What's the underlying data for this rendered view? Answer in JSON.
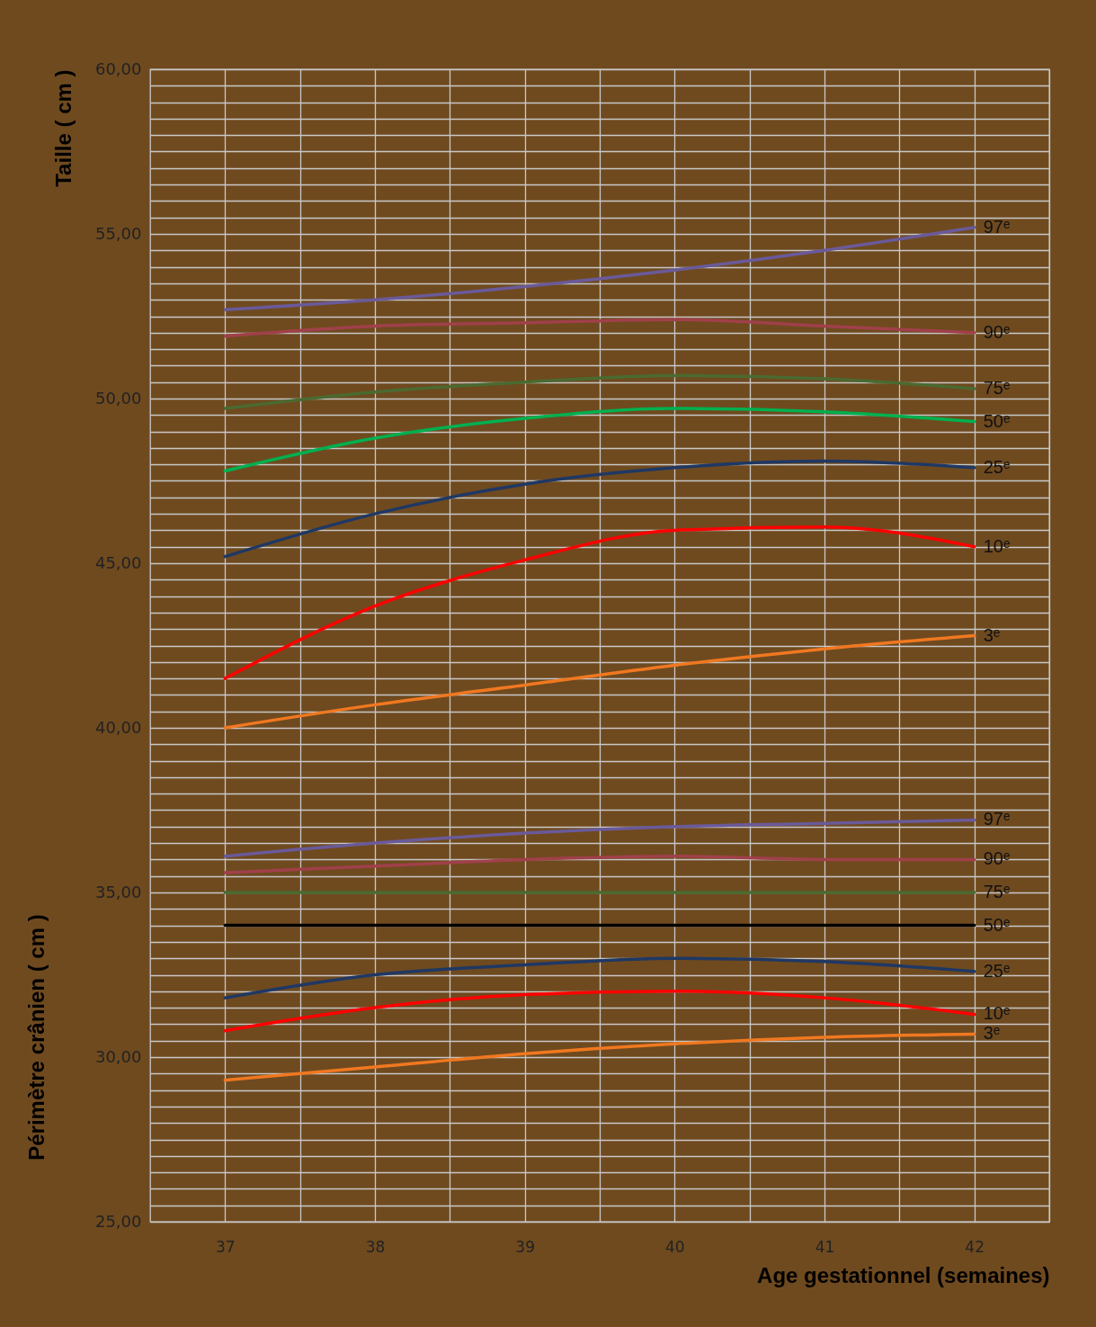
{
  "chart_data": {
    "type": "line",
    "xlabel": "Age gestationnel (semaines)",
    "ylabel": "Taille ( cm )",
    "annotations": [
      "Périmètre crânien ( cm )"
    ],
    "x": [
      37,
      38,
      39,
      40,
      41,
      42
    ],
    "xlim": [
      36.5,
      42.5
    ],
    "xticks": [
      37,
      {
        "value": 37.5,
        "label": null
      },
      38,
      {
        "value": 38.5,
        "label": null
      },
      39,
      {
        "value": 39.5,
        "label": null
      },
      40,
      {
        "value": 40.5,
        "label": null
      },
      41,
      {
        "value": 41.5,
        "label": null
      },
      42,
      {
        "value": 42.5,
        "label": null
      }
    ],
    "ylim": [
      25,
      60
    ],
    "yticks": [
      {
        "value": 25,
        "label": "25,00"
      },
      {
        "value": 25.5,
        "label": null
      },
      {
        "value": 26,
        "label": null
      },
      {
        "value": 26.5,
        "label": null
      },
      {
        "value": 27,
        "label": null
      },
      {
        "value": 27.5,
        "label": null
      },
      {
        "value": 28,
        "label": null
      },
      {
        "value": 28.5,
        "label": null
      },
      {
        "value": 29,
        "label": null
      },
      {
        "value": 29.5,
        "label": null
      },
      {
        "value": 30,
        "label": "30,00"
      },
      {
        "value": 30.5,
        "label": null
      },
      {
        "value": 31,
        "label": null
      },
      {
        "value": 31.5,
        "label": null
      },
      {
        "value": 32,
        "label": null
      },
      {
        "value": 32.5,
        "label": null
      },
      {
        "value": 33,
        "label": null
      },
      {
        "value": 33.5,
        "label": null
      },
      {
        "value": 34,
        "label": null
      },
      {
        "value": 34.5,
        "label": null
      },
      {
        "value": 35,
        "label": "35,00"
      },
      {
        "value": 35.5,
        "label": null
      },
      {
        "value": 36,
        "label": null
      },
      {
        "value": 36.5,
        "label": null
      },
      {
        "value": 37,
        "label": null
      },
      {
        "value": 37.5,
        "label": null
      },
      {
        "value": 38,
        "label": null
      },
      {
        "value": 38.5,
        "label": null
      },
      {
        "value": 39,
        "label": null
      },
      {
        "value": 39.5,
        "label": null
      },
      {
        "value": 40,
        "label": "40,00"
      },
      {
        "value": 40.5,
        "label": null
      },
      {
        "value": 41,
        "label": null
      },
      {
        "value": 41.5,
        "label": null
      },
      {
        "value": 42,
        "label": null
      },
      {
        "value": 42.5,
        "label": null
      },
      {
        "value": 43,
        "label": null
      },
      {
        "value": 43.5,
        "label": null
      },
      {
        "value": 44,
        "label": null
      },
      {
        "value": 44.5,
        "label": null
      },
      {
        "value": 45,
        "label": "45,00"
      },
      {
        "value": 45.5,
        "label": null
      },
      {
        "value": 46,
        "label": null
      },
      {
        "value": 46.5,
        "label": null
      },
      {
        "value": 47,
        "label": null
      },
      {
        "value": 47.5,
        "label": null
      },
      {
        "value": 48,
        "label": null
      },
      {
        "value": 48.5,
        "label": null
      },
      {
        "value": 49,
        "label": null
      },
      {
        "value": 49.5,
        "label": null
      },
      {
        "value": 50,
        "label": "50,00"
      },
      {
        "value": 50.5,
        "label": null
      },
      {
        "value": 51,
        "label": null
      },
      {
        "value": 51.5,
        "label": null
      },
      {
        "value": 52,
        "label": null
      },
      {
        "value": 52.5,
        "label": null
      },
      {
        "value": 53,
        "label": null
      },
      {
        "value": 53.5,
        "label": null
      },
      {
        "value": 54,
        "label": null
      },
      {
        "value": 54.5,
        "label": null
      },
      {
        "value": 55,
        "label": "55,00"
      },
      {
        "value": 55.5,
        "label": null
      },
      {
        "value": 56,
        "label": null
      },
      {
        "value": 56.5,
        "label": null
      },
      {
        "value": 57,
        "label": null
      },
      {
        "value": 57.5,
        "label": null
      },
      {
        "value": 58,
        "label": null
      },
      {
        "value": 58.5,
        "label": null
      },
      {
        "value": 59,
        "label": null
      },
      {
        "value": 59.5,
        "label": null
      },
      {
        "value": 60,
        "label": "60,00"
      }
    ],
    "grid": true,
    "marker": "none",
    "line_style": "solid",
    "series": [
      {
        "name": "97ᵉ",
        "color": "#6a5a9a",
        "values": [
          52.7,
          53.0,
          53.4,
          53.9,
          54.5,
          55.2
        ]
      },
      {
        "name": "90ᵉ",
        "color": "#a0404a",
        "values": [
          51.9,
          52.2,
          52.3,
          52.4,
          52.2,
          52.0
        ]
      },
      {
        "name": "75ᵉ",
        "color": "#4a6a30",
        "values": [
          49.7,
          50.2,
          50.5,
          50.7,
          50.6,
          50.3
        ]
      },
      {
        "name": "50ᵉ",
        "color": "#00b050",
        "values": [
          47.8,
          48.8,
          49.4,
          49.7,
          49.6,
          49.3
        ]
      },
      {
        "name": "25ᵉ",
        "color": "#1f3864",
        "values": [
          45.2,
          46.5,
          47.4,
          47.9,
          48.1,
          47.9
        ]
      },
      {
        "name": "10ᵉ",
        "color": "#ff0000",
        "values": [
          41.5,
          43.7,
          45.1,
          46.0,
          46.1,
          45.5
        ]
      },
      {
        "name": "3ᵉ",
        "color": "#f07820",
        "values": [
          40.0,
          40.7,
          41.3,
          41.9,
          42.4,
          42.8
        ]
      },
      {
        "name": "97ᵉ",
        "color": "#6a5a9a",
        "values": [
          36.1,
          36.5,
          36.8,
          37.0,
          37.1,
          37.2
        ]
      },
      {
        "name": "90ᵉ",
        "color": "#a0404a",
        "values": [
          35.6,
          35.8,
          36.0,
          36.1,
          36.0,
          36.0
        ]
      },
      {
        "name": "75ᵉ",
        "color": "#4a6a30",
        "values": [
          35.0,
          35.0,
          35.0,
          35.0,
          35.0,
          35.0
        ]
      },
      {
        "name": "50ᵉ",
        "color": "#000000",
        "values": [
          34.0,
          34.0,
          34.0,
          34.0,
          34.0,
          34.0
        ]
      },
      {
        "name": "25ᵉ",
        "color": "#1f3864",
        "values": [
          31.8,
          32.5,
          32.8,
          33.0,
          32.9,
          32.6
        ]
      },
      {
        "name": "10ᵉ",
        "color": "#ff0000",
        "values": [
          30.8,
          31.5,
          31.9,
          32.0,
          31.8,
          31.3
        ]
      },
      {
        "name": "3ᵉ",
        "color": "#f07820",
        "values": [
          29.3,
          29.7,
          30.1,
          30.4,
          30.6,
          30.7
        ]
      }
    ]
  }
}
